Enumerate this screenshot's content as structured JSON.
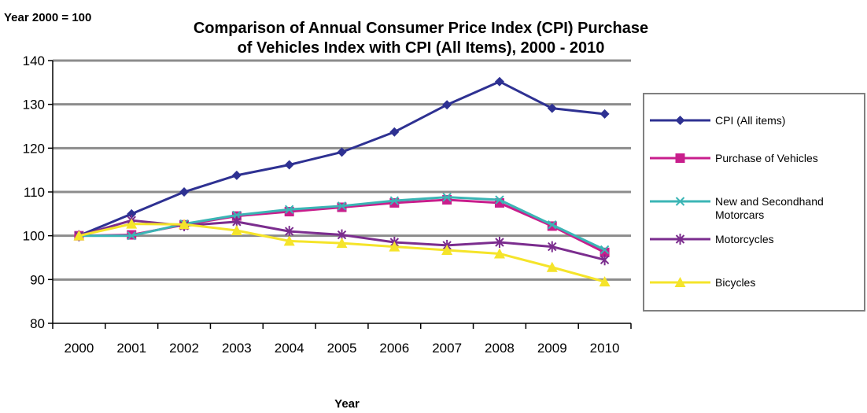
{
  "chart_data": {
    "type": "line",
    "title": "Comparison of Annual Consumer Price Index (CPI) Purchase of Vehicles Index with CPI (All Items), 2000 - 2010",
    "title_lines": [
      "Comparison of Annual Consumer Price Index (CPI) Purchase",
      "of Vehicles Index with CPI (All Items), 2000 - 2010"
    ],
    "ylabel": "Year 2000 = 100",
    "xlabel": "Year",
    "categories": [
      "2000",
      "2001",
      "2002",
      "2003",
      "2004",
      "2005",
      "2006",
      "2007",
      "2008",
      "2009",
      "2010"
    ],
    "ylim": [
      80,
      140
    ],
    "yticks": [
      80,
      90,
      100,
      110,
      120,
      130,
      140
    ],
    "grid": true,
    "legend_position": "right",
    "series": [
      {
        "name": "CPI (All items)",
        "color": "#2E3192",
        "marker": "diamond",
        "values": [
          100,
          105,
          110,
          113.8,
          116.2,
          119.1,
          123.7,
          129.9,
          135.2,
          129.1,
          127.8
        ]
      },
      {
        "name": "Purchase of Vehicles",
        "color": "#C81E8C",
        "marker": "square",
        "values": [
          100,
          100.2,
          102.5,
          104.5,
          105.5,
          106.5,
          107.5,
          108.2,
          107.5,
          102.2,
          96.2
        ]
      },
      {
        "name": "New and Secondhand Motorcars",
        "legend_lines": [
          "New and Secondhand",
          "Motorcars"
        ],
        "color": "#3BB5B5",
        "marker": "x",
        "values": [
          100,
          100,
          102.7,
          104.7,
          106,
          106.8,
          108,
          108.8,
          108.2,
          102.5,
          96.8
        ]
      },
      {
        "name": "Motorcycles",
        "color": "#7B2D8E",
        "marker": "star",
        "values": [
          100,
          103.5,
          102.3,
          103.2,
          101,
          100.2,
          98.5,
          97.8,
          98.5,
          97.5,
          94.5
        ]
      },
      {
        "name": "Bicycles",
        "color": "#F5E42A",
        "marker": "triangle",
        "values": [
          100,
          102.7,
          102.6,
          101.2,
          98.8,
          98.3,
          97.5,
          96.7,
          95.9,
          92.8,
          89.5
        ]
      }
    ]
  }
}
